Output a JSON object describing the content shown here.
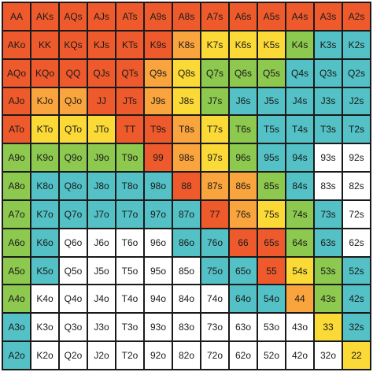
{
  "colors": {
    "R": "#ee5a2c",
    "O": "#f9a43d",
    "Y": "#fbd936",
    "G": "#8dc84f",
    "T": "#53c1c5",
    "W": "#ffffff"
  },
  "rows": [
    {
      "cells": [
        {
          "label": "AA",
          "c": "R"
        },
        {
          "label": "AKs",
          "c": "R"
        },
        {
          "label": "AQs",
          "c": "R"
        },
        {
          "label": "AJs",
          "c": "R"
        },
        {
          "label": "ATs",
          "c": "R"
        },
        {
          "label": "A9s",
          "c": "R"
        },
        {
          "label": "A8s",
          "c": "R"
        },
        {
          "label": "A7s",
          "c": "R"
        },
        {
          "label": "A6s",
          "c": "R"
        },
        {
          "label": "A5s",
          "c": "R"
        },
        {
          "label": "A4s",
          "c": "R"
        },
        {
          "label": "A3s",
          "c": "R"
        },
        {
          "label": "A2s",
          "c": "R"
        }
      ]
    },
    {
      "cells": [
        {
          "label": "AKo",
          "c": "R"
        },
        {
          "label": "KK",
          "c": "R"
        },
        {
          "label": "KQs",
          "c": "R"
        },
        {
          "label": "KJs",
          "c": "R"
        },
        {
          "label": "KTs",
          "c": "R"
        },
        {
          "label": "K9s",
          "c": "R"
        },
        {
          "label": "K8s",
          "c": "O"
        },
        {
          "label": "K7s",
          "c": "Y"
        },
        {
          "label": "K6s",
          "c": "Y"
        },
        {
          "label": "K5s",
          "c": "Y"
        },
        {
          "label": "K4s",
          "c": "G"
        },
        {
          "label": "K3s",
          "c": "T"
        },
        {
          "label": "K2s",
          "c": "T"
        }
      ]
    },
    {
      "cells": [
        {
          "label": "AQo",
          "c": "R"
        },
        {
          "label": "KQo",
          "c": "R"
        },
        {
          "label": "QQ",
          "c": "R"
        },
        {
          "label": "QJs",
          "c": "R"
        },
        {
          "label": "QTs",
          "c": "R"
        },
        {
          "label": "Q9s",
          "c": "O"
        },
        {
          "label": "Q8s",
          "c": "Y"
        },
        {
          "label": "Q7s",
          "c": "G"
        },
        {
          "label": "Q6s",
          "c": "G"
        },
        {
          "label": "Q5s",
          "c": "G"
        },
        {
          "label": "Q4s",
          "c": "T"
        },
        {
          "label": "Q3s",
          "c": "T"
        },
        {
          "label": "Q2s",
          "c": "T"
        }
      ]
    },
    {
      "cells": [
        {
          "label": "AJo",
          "c": "R"
        },
        {
          "label": "KJo",
          "c": "O"
        },
        {
          "label": "QJo",
          "c": "O"
        },
        {
          "label": "JJ",
          "c": "R"
        },
        {
          "label": "JTs",
          "c": "R"
        },
        {
          "label": "J9s",
          "c": "O"
        },
        {
          "label": "J8s",
          "c": "Y"
        },
        {
          "label": "J7s",
          "c": "G"
        },
        {
          "label": "J6s",
          "c": "T"
        },
        {
          "label": "J5s",
          "c": "T"
        },
        {
          "label": "J4s",
          "c": "T"
        },
        {
          "label": "J3s",
          "c": "T"
        },
        {
          "label": "J2s",
          "c": "T"
        }
      ]
    },
    {
      "cells": [
        {
          "label": "ATo",
          "c": "R"
        },
        {
          "label": "KTo",
          "c": "Y"
        },
        {
          "label": "QTo",
          "c": "Y"
        },
        {
          "label": "JTo",
          "c": "Y"
        },
        {
          "label": "TT",
          "c": "R"
        },
        {
          "label": "T9s",
          "c": "R"
        },
        {
          "label": "T8s",
          "c": "O"
        },
        {
          "label": "T7s",
          "c": "Y"
        },
        {
          "label": "T6s",
          "c": "G"
        },
        {
          "label": "T5s",
          "c": "T"
        },
        {
          "label": "T4s",
          "c": "T"
        },
        {
          "label": "T3s",
          "c": "T"
        },
        {
          "label": "T2s",
          "c": "T"
        }
      ]
    },
    {
      "cells": [
        {
          "label": "A9o",
          "c": "G"
        },
        {
          "label": "K9o",
          "c": "G"
        },
        {
          "label": "Q9o",
          "c": "G"
        },
        {
          "label": "J9o",
          "c": "G"
        },
        {
          "label": "T9o",
          "c": "G"
        },
        {
          "label": "99",
          "c": "R"
        },
        {
          "label": "98s",
          "c": "O"
        },
        {
          "label": "97s",
          "c": "Y"
        },
        {
          "label": "96s",
          "c": "G"
        },
        {
          "label": "95s",
          "c": "T"
        },
        {
          "label": "94s",
          "c": "T"
        },
        {
          "label": "93s",
          "c": "W"
        },
        {
          "label": "92s",
          "c": "W"
        }
      ]
    },
    {
      "cells": [
        {
          "label": "A8o",
          "c": "G"
        },
        {
          "label": "K8o",
          "c": "T"
        },
        {
          "label": "Q8o",
          "c": "T"
        },
        {
          "label": "J8o",
          "c": "T"
        },
        {
          "label": "T8o",
          "c": "T"
        },
        {
          "label": "98o",
          "c": "T"
        },
        {
          "label": "88",
          "c": "R"
        },
        {
          "label": "87s",
          "c": "O"
        },
        {
          "label": "86s",
          "c": "O"
        },
        {
          "label": "85s",
          "c": "G"
        },
        {
          "label": "84s",
          "c": "T"
        },
        {
          "label": "83s",
          "c": "W"
        },
        {
          "label": "82s",
          "c": "W"
        }
      ]
    },
    {
      "cells": [
        {
          "label": "A7o",
          "c": "G"
        },
        {
          "label": "K7o",
          "c": "T"
        },
        {
          "label": "Q7o",
          "c": "T"
        },
        {
          "label": "J7o",
          "c": "T"
        },
        {
          "label": "T7o",
          "c": "T"
        },
        {
          "label": "97o",
          "c": "T"
        },
        {
          "label": "87o",
          "c": "T"
        },
        {
          "label": "77",
          "c": "R"
        },
        {
          "label": "76s",
          "c": "O"
        },
        {
          "label": "75s",
          "c": "Y"
        },
        {
          "label": "74s",
          "c": "G"
        },
        {
          "label": "73s",
          "c": "T"
        },
        {
          "label": "72s",
          "c": "W"
        }
      ]
    },
    {
      "cells": [
        {
          "label": "A6o",
          "c": "G"
        },
        {
          "label": "K6o",
          "c": "T"
        },
        {
          "label": "Q6o",
          "c": "W"
        },
        {
          "label": "J6o",
          "c": "W"
        },
        {
          "label": "T6o",
          "c": "W"
        },
        {
          "label": "96o",
          "c": "W"
        },
        {
          "label": "86o",
          "c": "T"
        },
        {
          "label": "76o",
          "c": "T"
        },
        {
          "label": "66",
          "c": "R"
        },
        {
          "label": "65s",
          "c": "R"
        },
        {
          "label": "64s",
          "c": "G"
        },
        {
          "label": "63s",
          "c": "T"
        },
        {
          "label": "62s",
          "c": "W"
        }
      ]
    },
    {
      "cells": [
        {
          "label": "A5o",
          "c": "G"
        },
        {
          "label": "K5o",
          "c": "T"
        },
        {
          "label": "Q5o",
          "c": "W"
        },
        {
          "label": "J5o",
          "c": "W"
        },
        {
          "label": "T5o",
          "c": "W"
        },
        {
          "label": "95o",
          "c": "W"
        },
        {
          "label": "85o",
          "c": "W"
        },
        {
          "label": "75o",
          "c": "T"
        },
        {
          "label": "65o",
          "c": "T"
        },
        {
          "label": "55",
          "c": "R"
        },
        {
          "label": "54s",
          "c": "Y"
        },
        {
          "label": "53s",
          "c": "G"
        },
        {
          "label": "52s",
          "c": "T"
        }
      ]
    },
    {
      "cells": [
        {
          "label": "A4o",
          "c": "G"
        },
        {
          "label": "K4o",
          "c": "W"
        },
        {
          "label": "Q4o",
          "c": "W"
        },
        {
          "label": "J4o",
          "c": "W"
        },
        {
          "label": "T4o",
          "c": "W"
        },
        {
          "label": "94o",
          "c": "W"
        },
        {
          "label": "84o",
          "c": "W"
        },
        {
          "label": "74o",
          "c": "W"
        },
        {
          "label": "64o",
          "c": "T"
        },
        {
          "label": "54o",
          "c": "T"
        },
        {
          "label": "44",
          "c": "O"
        },
        {
          "label": "43s",
          "c": "G"
        },
        {
          "label": "42s",
          "c": "T"
        }
      ]
    },
    {
      "cells": [
        {
          "label": "A3o",
          "c": "T"
        },
        {
          "label": "K3o",
          "c": "W"
        },
        {
          "label": "Q3o",
          "c": "W"
        },
        {
          "label": "J3o",
          "c": "W"
        },
        {
          "label": "T3o",
          "c": "W"
        },
        {
          "label": "93o",
          "c": "W"
        },
        {
          "label": "83o",
          "c": "W"
        },
        {
          "label": "73o",
          "c": "W"
        },
        {
          "label": "63o",
          "c": "W"
        },
        {
          "label": "53o",
          "c": "W"
        },
        {
          "label": "43o",
          "c": "W"
        },
        {
          "label": "33",
          "c": "Y"
        },
        {
          "label": "32s",
          "c": "T"
        }
      ]
    },
    {
      "cells": [
        {
          "label": "A2o",
          "c": "T"
        },
        {
          "label": "K2o",
          "c": "W"
        },
        {
          "label": "Q2o",
          "c": "W"
        },
        {
          "label": "J2o",
          "c": "W"
        },
        {
          "label": "T2o",
          "c": "W"
        },
        {
          "label": "92o",
          "c": "W"
        },
        {
          "label": "82o",
          "c": "W"
        },
        {
          "label": "72o",
          "c": "W"
        },
        {
          "label": "62o",
          "c": "W"
        },
        {
          "label": "52o",
          "c": "W"
        },
        {
          "label": "42o",
          "c": "W"
        },
        {
          "label": "32o",
          "c": "W"
        },
        {
          "label": "22",
          "c": "Y"
        }
      ]
    }
  ]
}
